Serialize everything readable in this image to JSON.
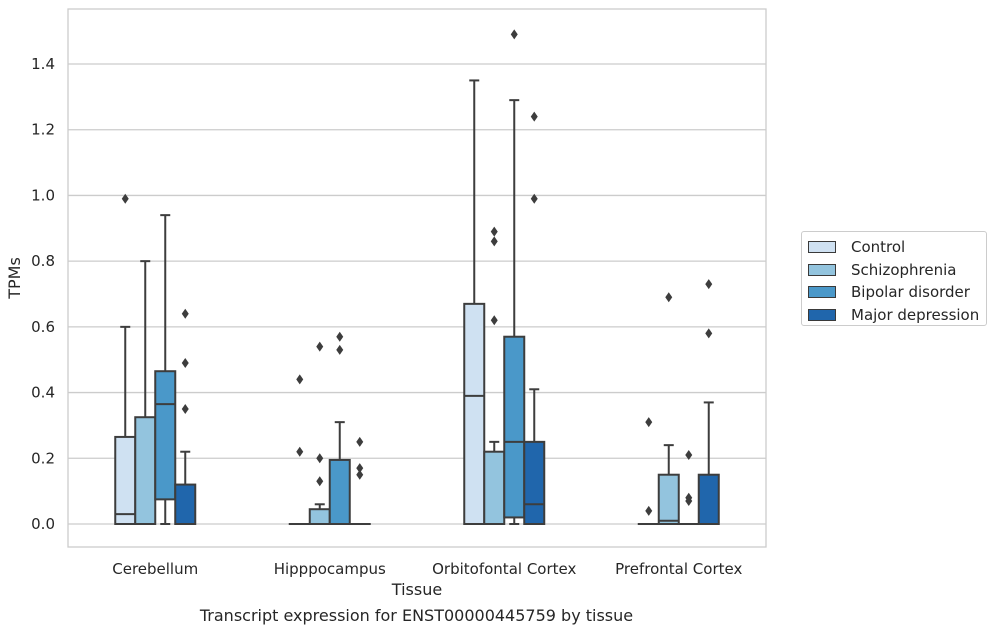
{
  "chart_data": {
    "type": "boxplot",
    "xlabel": "Tissue",
    "ylabel": "TPMs",
    "ylim": [
      -0.07,
      1.56
    ],
    "yticks": [
      0.0,
      0.2,
      0.4,
      0.6,
      0.8,
      1.0,
      1.2,
      1.4
    ],
    "ytick_labels": [
      "0.0",
      "0.2",
      "0.4",
      "0.6",
      "0.8",
      "1.0",
      "1.2",
      "1.4"
    ],
    "grid": "horizontal",
    "legend_position": "right",
    "categories": [
      "Cerebellum",
      "Hipppocampus",
      "Orbitofontal Cortex",
      "Prefrontal Cortex"
    ],
    "series": [
      {
        "name": "Control",
        "color": "#cfe1f2",
        "boxes": [
          {
            "q1": 0.0,
            "median": 0.03,
            "q3": 0.265,
            "whisker_low": 0.0,
            "whisker_high": 0.6,
            "outliers": [
              0.99
            ]
          },
          {
            "q1": 0.0,
            "median": 0.0,
            "q3": 0.0,
            "whisker_low": 0.0,
            "whisker_high": 0.0,
            "outliers": [
              0.22,
              0.44
            ]
          },
          {
            "q1": 0.0,
            "median": 0.39,
            "q3": 0.67,
            "whisker_low": 0.0,
            "whisker_high": 1.35,
            "outliers": []
          },
          {
            "q1": 0.0,
            "median": 0.0,
            "q3": 0.0,
            "whisker_low": 0.0,
            "whisker_high": 0.0,
            "outliers": [
              0.04,
              0.31
            ]
          }
        ]
      },
      {
        "name": "Schizophrenia",
        "color": "#93c4de",
        "boxes": [
          {
            "q1": 0.0,
            "median": 0.0,
            "q3": 0.325,
            "whisker_low": 0.0,
            "whisker_high": 0.8,
            "outliers": []
          },
          {
            "q1": 0.0,
            "median": 0.0,
            "q3": 0.045,
            "whisker_low": 0.0,
            "whisker_high": 0.06,
            "outliers": [
              0.13,
              0.2,
              0.54
            ]
          },
          {
            "q1": 0.0,
            "median": 0.0,
            "q3": 0.22,
            "whisker_low": 0.0,
            "whisker_high": 0.25,
            "outliers": [
              0.62,
              0.86,
              0.89
            ]
          },
          {
            "q1": 0.0,
            "median": 0.01,
            "q3": 0.15,
            "whisker_low": 0.0,
            "whisker_high": 0.24,
            "outliers": [
              0.69
            ]
          }
        ]
      },
      {
        "name": "Bipolar disorder",
        "color": "#4a98c9",
        "boxes": [
          {
            "q1": 0.075,
            "median": 0.365,
            "q3": 0.465,
            "whisker_low": 0.0,
            "whisker_high": 0.94,
            "outliers": []
          },
          {
            "q1": 0.0,
            "median": 0.0,
            "q3": 0.195,
            "whisker_low": 0.0,
            "whisker_high": 0.31,
            "outliers": [
              0.53,
              0.57
            ]
          },
          {
            "q1": 0.02,
            "median": 0.25,
            "q3": 0.57,
            "whisker_low": 0.0,
            "whisker_high": 1.29,
            "outliers": [
              1.49
            ]
          },
          {
            "q1": 0.0,
            "median": 0.0,
            "q3": 0.0,
            "whisker_low": 0.0,
            "whisker_high": 0.0,
            "outliers": [
              0.07,
              0.08,
              0.21
            ]
          }
        ]
      },
      {
        "name": "Major depression",
        "color": "#2066ac",
        "boxes": [
          {
            "q1": 0.0,
            "median": 0.0,
            "q3": 0.12,
            "whisker_low": 0.0,
            "whisker_high": 0.22,
            "outliers": [
              0.35,
              0.49,
              0.64
            ]
          },
          {
            "q1": 0.0,
            "median": 0.0,
            "q3": 0.0,
            "whisker_low": 0.0,
            "whisker_high": 0.0,
            "outliers": [
              0.15,
              0.17,
              0.25
            ]
          },
          {
            "q1": 0.0,
            "median": 0.06,
            "q3": 0.25,
            "whisker_low": 0.0,
            "whisker_high": 0.41,
            "outliers": [
              0.99,
              1.24
            ]
          },
          {
            "q1": 0.0,
            "median": 0.0,
            "q3": 0.15,
            "whisker_low": 0.0,
            "whisker_high": 0.37,
            "outliers": [
              0.58,
              0.73
            ]
          }
        ]
      }
    ]
  },
  "caption": "Transcript expression for ENST00000445759 by tissue"
}
